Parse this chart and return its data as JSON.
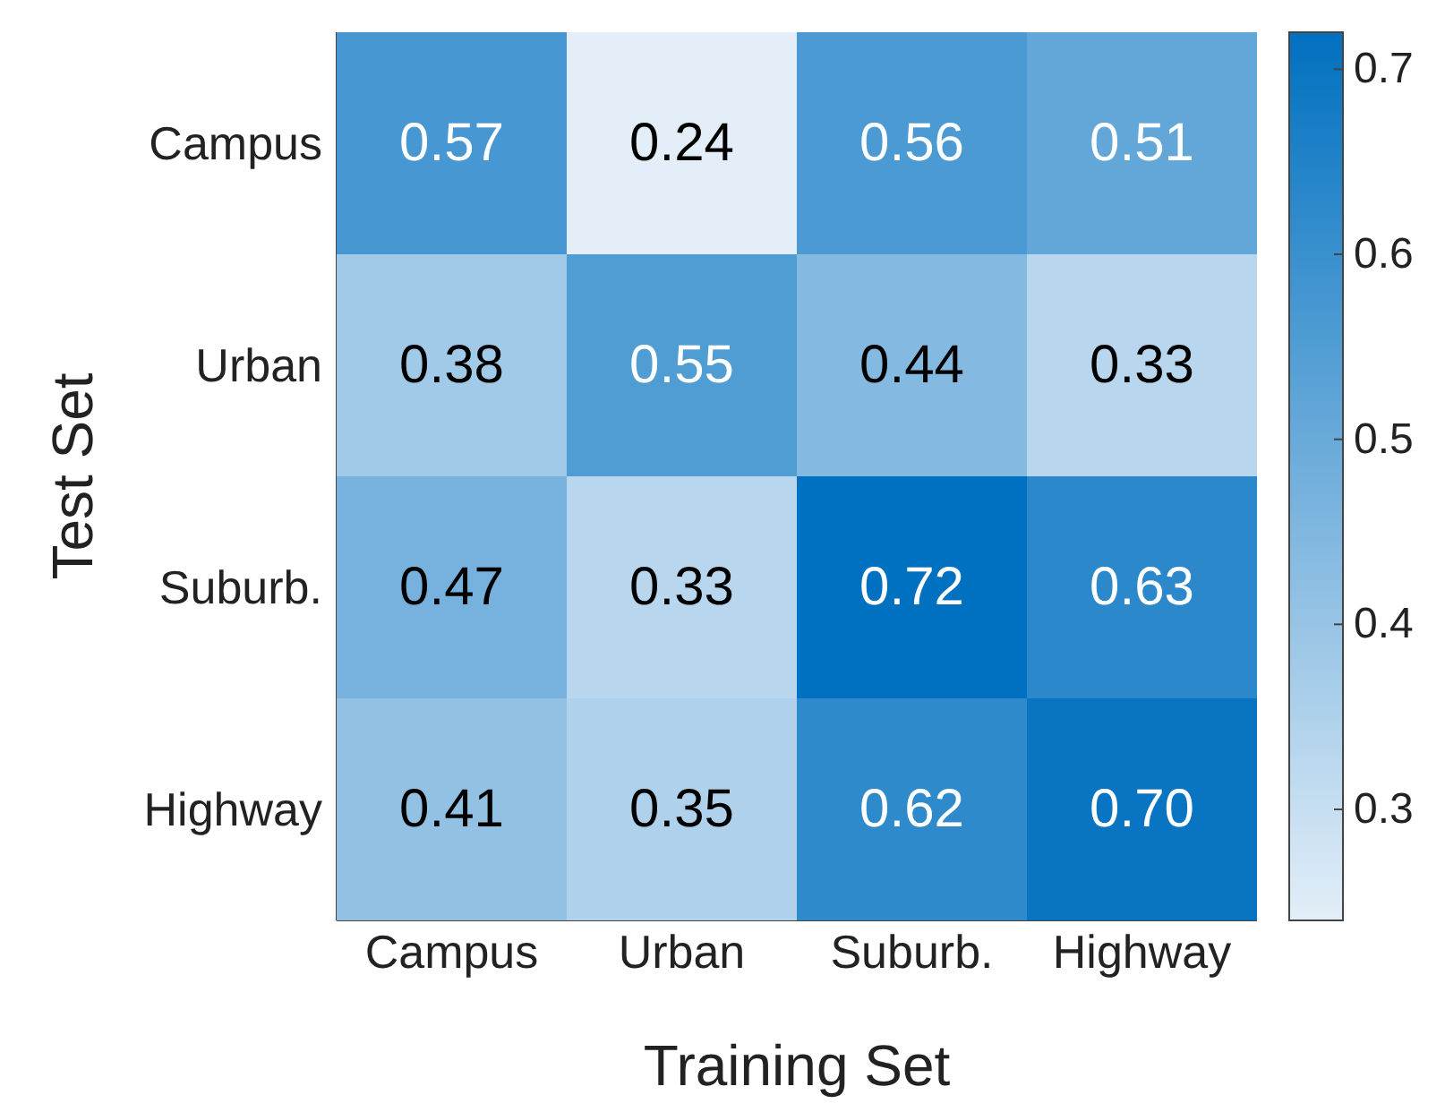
{
  "chart_data": {
    "type": "heatmap",
    "xlabel": "Training Set",
    "ylabel": "Test Set",
    "categories": [
      "Campus",
      "Urban",
      "Suburb.",
      "Highway"
    ],
    "y_categories": [
      "Campus",
      "Urban",
      "Suburb.",
      "Highway"
    ],
    "cells": [
      [
        0.57,
        0.24,
        0.56,
        0.51
      ],
      [
        0.38,
        0.55,
        0.44,
        0.33
      ],
      [
        0.47,
        0.33,
        0.72,
        0.63
      ],
      [
        0.41,
        0.35,
        0.62,
        0.7
      ]
    ],
    "cell_labels": [
      [
        "0.57",
        "0.24",
        "0.56",
        "0.51"
      ],
      [
        "0.38",
        "0.55",
        "0.44",
        "0.33"
      ],
      [
        "0.47",
        "0.33",
        "0.72",
        "0.63"
      ],
      [
        "0.41",
        "0.35",
        "0.62",
        "0.70"
      ]
    ],
    "clim": [
      0.24,
      0.72
    ],
    "cticks": [
      0.3,
      0.4,
      0.5,
      0.6,
      0.7
    ]
  }
}
